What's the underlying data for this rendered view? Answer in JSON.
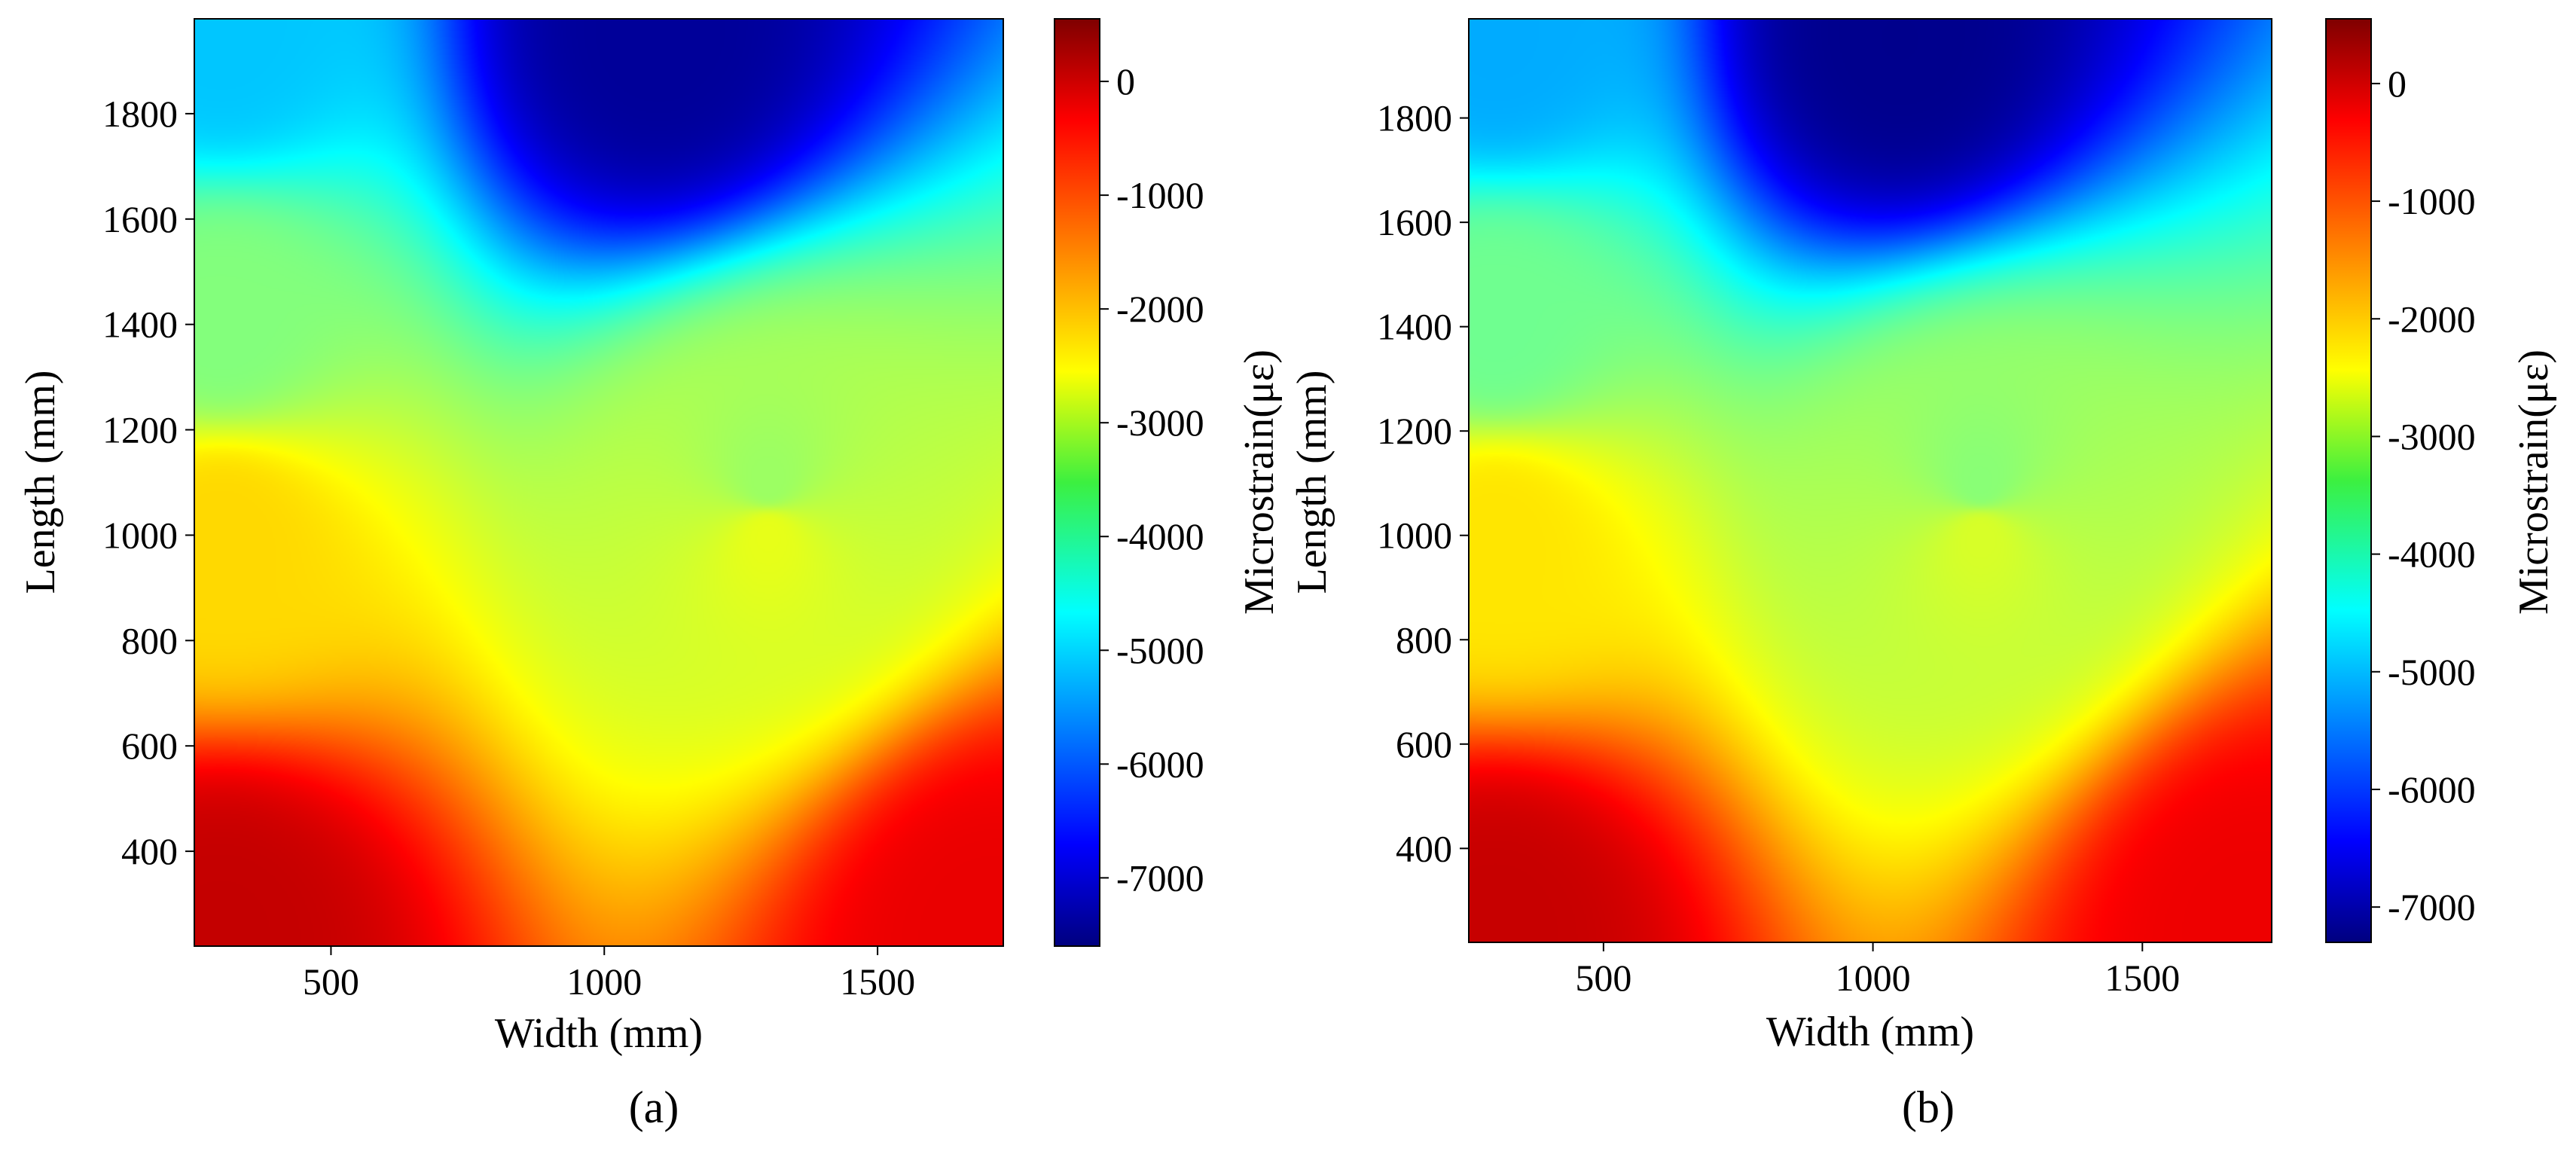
{
  "chart_data": [
    {
      "type": "heatmap",
      "panel_label": "(a)",
      "xlabel": "Width (mm)",
      "ylabel": "Length (mm)",
      "colorbar_label": "Microstrain(με)",
      "xlim": [
        250,
        1730
      ],
      "ylim": [
        220,
        1980
      ],
      "x_ticks": [
        500,
        1000,
        1500
      ],
      "y_ticks": [
        400,
        600,
        800,
        1000,
        1200,
        1400,
        1600,
        1800
      ],
      "colorbar_range": [
        -7600,
        550
      ],
      "colorbar_ticks": [
        0,
        -1000,
        -2000,
        -3000,
        -4000,
        -5000,
        -6000,
        -7000
      ],
      "colormap": "jet",
      "grid": false,
      "field": {
        "description_values": "estimated microstrain at sample points (x mm, y mm, value)",
        "points": [
          {
            "x": 300,
            "y": 250,
            "v": 0
          },
          {
            "x": 1700,
            "y": 250,
            "v": -300
          },
          {
            "x": 300,
            "y": 1000,
            "v": -2200
          },
          {
            "x": 1300,
            "y": 1000,
            "v": -2700
          },
          {
            "x": 300,
            "y": 1400,
            "v": -3500
          },
          {
            "x": 1300,
            "y": 1100,
            "v": -3300
          },
          {
            "x": 1100,
            "y": 1950,
            "v": -7400
          },
          {
            "x": 300,
            "y": 1950,
            "v": -5000
          }
        ]
      }
    },
    {
      "type": "heatmap",
      "panel_label": "(b)",
      "xlabel": "Width (mm)",
      "ylabel": "Length (mm)",
      "colorbar_label": "Microstrain(με)",
      "xlim": [
        250,
        1740
      ],
      "ylim": [
        220,
        1990
      ],
      "x_ticks": [
        500,
        1000,
        1500
      ],
      "y_ticks": [
        400,
        600,
        800,
        1000,
        1200,
        1400,
        1600,
        1800
      ],
      "colorbar_range": [
        -7300,
        550
      ],
      "colorbar_ticks": [
        0,
        -1000,
        -2000,
        -3000,
        -4000,
        -5000,
        -6000,
        -7000
      ],
      "colormap": "jet",
      "grid": false,
      "field": {
        "description_values": "estimated microstrain at sample points (x mm, y mm, value)",
        "points": [
          {
            "x": 300,
            "y": 250,
            "v": 0
          },
          {
            "x": 1700,
            "y": 250,
            "v": -300
          },
          {
            "x": 300,
            "y": 1000,
            "v": -2200
          },
          {
            "x": 1200,
            "y": 1000,
            "v": -2700
          },
          {
            "x": 300,
            "y": 1400,
            "v": -3500
          },
          {
            "x": 1200,
            "y": 1100,
            "v": -3300
          },
          {
            "x": 1050,
            "y": 1950,
            "v": -7200
          },
          {
            "x": 300,
            "y": 1950,
            "v": -5000
          }
        ]
      }
    }
  ]
}
